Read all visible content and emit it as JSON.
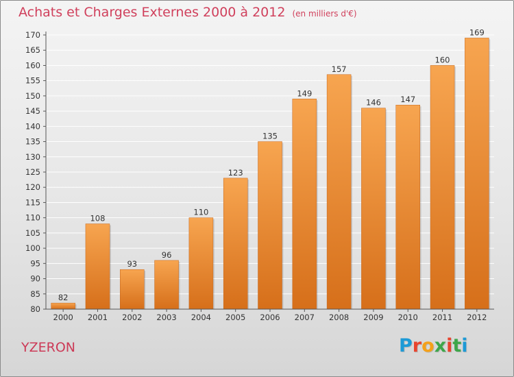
{
  "title": "Achats et Charges Externes 2000 à 2012",
  "unit": "(en milliers d'€)",
  "commune": "YZERON",
  "logo": {
    "letters": [
      "P",
      "r",
      "o",
      "x",
      "i",
      "t",
      "i"
    ]
  },
  "colors": {
    "title": "#d0405c",
    "bar_light": "#f7a550",
    "bar_dark": "#d66f1a",
    "grid": "#ffffff",
    "logo": [
      "#1d9ad6",
      "#e8442e",
      "#f4a11b",
      "#3ea64a",
      "#e8442e",
      "#3ea64a",
      "#1d9ad6"
    ]
  },
  "chart_data": {
    "type": "bar",
    "categories": [
      "2000",
      "2001",
      "2002",
      "2003",
      "2004",
      "2005",
      "2006",
      "2007",
      "2008",
      "2009",
      "2010",
      "2011",
      "2012"
    ],
    "values": [
      82,
      108,
      93,
      96,
      110,
      123,
      135,
      149,
      157,
      146,
      147,
      160,
      169
    ],
    "ylim": [
      80,
      170
    ],
    "ytick_step": 5,
    "grid": true,
    "data_labels": true
  }
}
